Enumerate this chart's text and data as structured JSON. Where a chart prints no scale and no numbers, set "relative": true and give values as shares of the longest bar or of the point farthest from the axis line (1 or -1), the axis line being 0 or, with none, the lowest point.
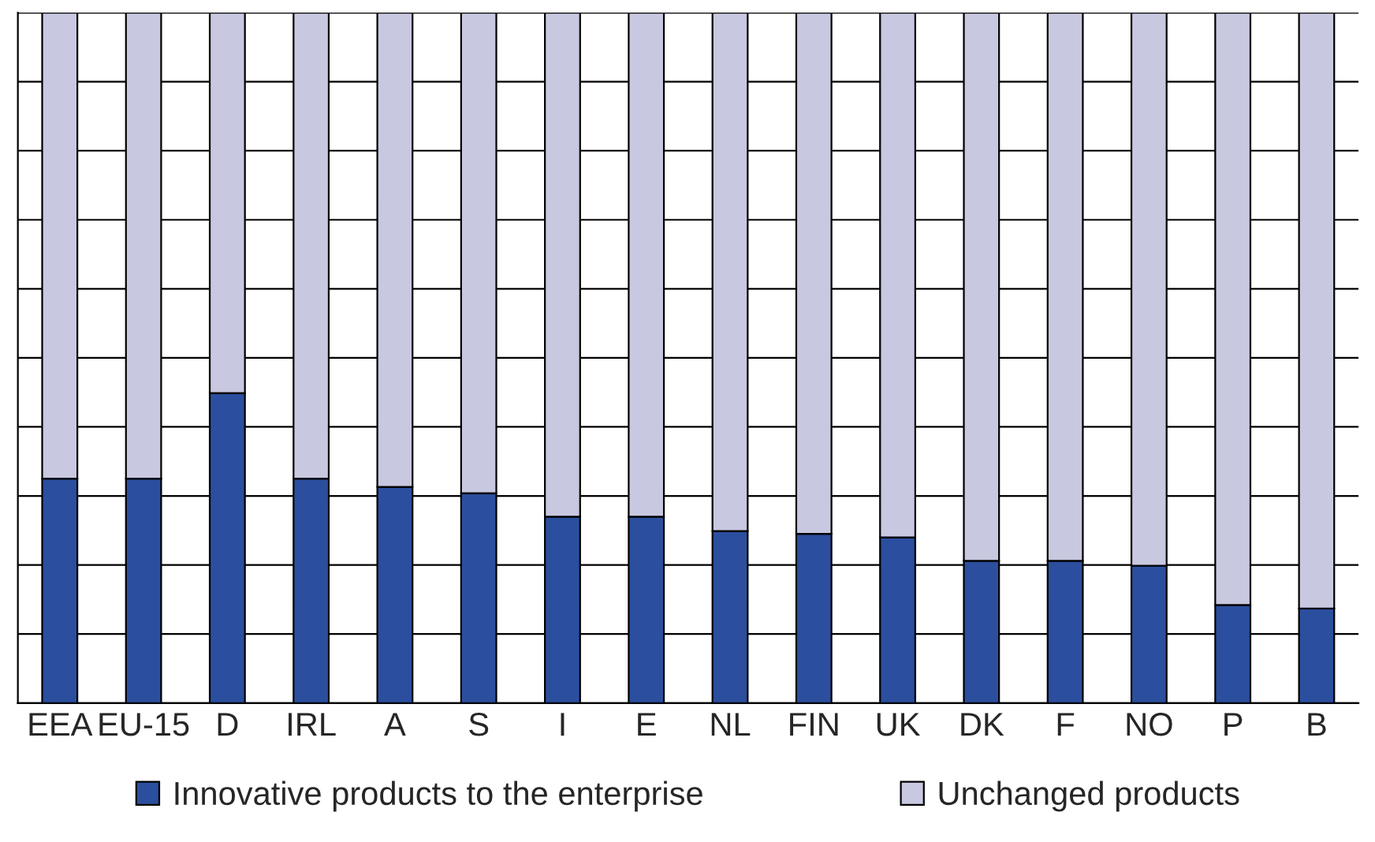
{
  "chart_data": {
    "type": "bar",
    "stacked": true,
    "relative": true,
    "grid": "y",
    "legend": "bottom",
    "categories": [
      "EEA",
      "EU-15",
      "D",
      "IRL",
      "A",
      "S",
      "I",
      "E",
      "NL",
      "FIN",
      "UK",
      "DK",
      "F",
      "NO",
      "P",
      "B"
    ],
    "series": [
      {
        "name": "Innovative products to the enterprise",
        "color": "#2b4f9e",
        "values": [
          0.325,
          0.325,
          0.449,
          0.325,
          0.313,
          0.304,
          0.27,
          0.27,
          0.249,
          0.245,
          0.24,
          0.206,
          0.206,
          0.199,
          0.142,
          0.137
        ]
      },
      {
        "name": "Unchanged products",
        "color": "#c8c8e0",
        "values": [
          0.675,
          0.675,
          0.551,
          0.675,
          0.687,
          0.696,
          0.73,
          0.73,
          0.751,
          0.755,
          0.76,
          0.794,
          0.794,
          0.801,
          0.858,
          0.863
        ]
      }
    ]
  }
}
